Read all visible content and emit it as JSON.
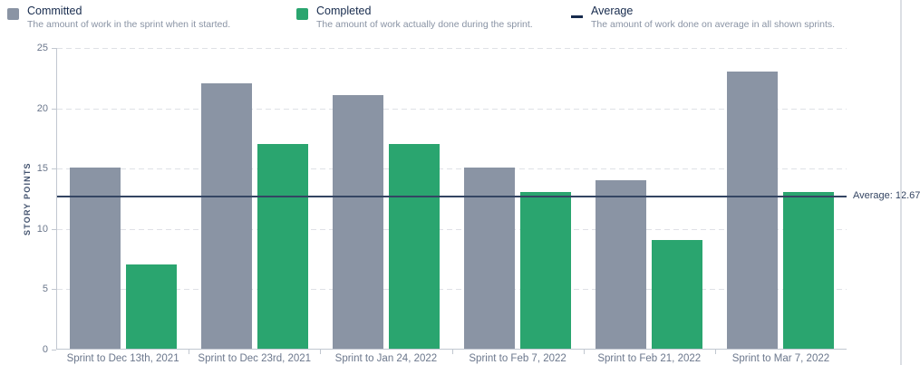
{
  "legend": {
    "items": [
      {
        "label": "Committed",
        "description": "The amount of work in the sprint when it started.",
        "icon": "committed-swatch",
        "color": "#8A94A4"
      },
      {
        "label": "Completed",
        "description": "The amount of work actually done during the sprint.",
        "icon": "completed-swatch",
        "color": "#2AA56F"
      },
      {
        "label": "Average",
        "description": "The amount of work done on average in all shown sprints.",
        "icon": "average-line",
        "color": "#172B4D"
      }
    ]
  },
  "y_axis": {
    "title": "STORY POINTS"
  },
  "average_annotation": "Average: 12.67",
  "colors": {
    "committed_bar": "#8A94A4",
    "completed_bar": "#2AA56F",
    "average_line": "#344563",
    "grid": "#DFE1E6",
    "axis": "#C1C7D0",
    "tick_text": "#6B778C"
  },
  "chart_data": {
    "type": "bar",
    "title": "",
    "categories": [
      "Sprint to Dec 13th, 2021",
      "Sprint to Dec 23rd, 2021",
      "Sprint to Jan 24, 2022",
      "Sprint to Feb 7, 2022",
      "Sprint to Feb 21, 2022",
      "Sprint to Mar 7, 2022"
    ],
    "series": [
      {
        "name": "Committed",
        "color": "#8A94A4",
        "values": [
          15,
          22,
          21,
          15,
          14,
          23
        ]
      },
      {
        "name": "Completed",
        "color": "#2AA56F",
        "values": [
          7,
          17,
          17,
          13,
          9,
          13
        ]
      }
    ],
    "average": 12.67,
    "average_label": "Average: 12.67",
    "average_line_color": "#344563",
    "xlabel": "",
    "ylabel": "STORY POINTS",
    "ylim": [
      0,
      25
    ],
    "yticks": [
      0,
      5,
      10,
      15,
      20,
      25
    ],
    "grid": "horizontal-dashed",
    "legend_position": "top"
  }
}
